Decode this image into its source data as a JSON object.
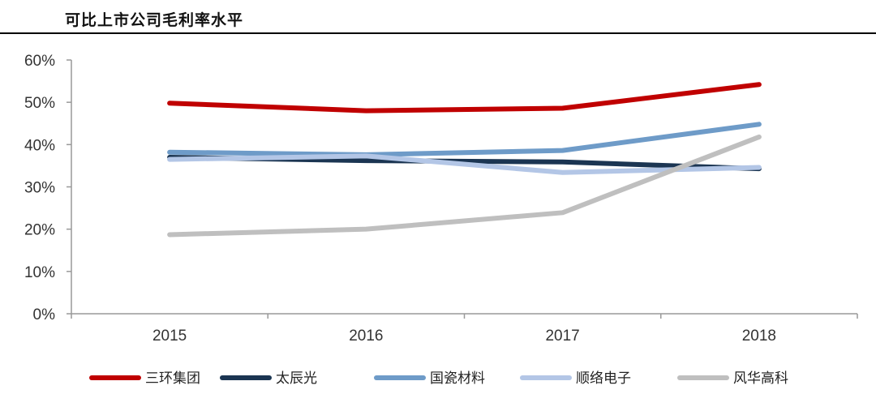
{
  "chart_data": {
    "type": "line",
    "title": "可比上市公司毛利率水平",
    "x": [
      "2015",
      "2016",
      "2017",
      "2018"
    ],
    "ylim": [
      0,
      60
    ],
    "yticks": [
      "0%",
      "10%",
      "20%",
      "30%",
      "40%",
      "50%",
      "60%"
    ],
    "grid": false,
    "legend_position": "bottom",
    "series": [
      {
        "name": "三环集团",
        "color": "#c00000",
        "values": [
          49.8,
          48.0,
          48.6,
          54.2
        ]
      },
      {
        "name": "太辰光",
        "color": "#1b3552",
        "values": [
          37.0,
          36.2,
          35.9,
          34.3
        ]
      },
      {
        "name": "国瓷材料",
        "color": "#6e9bc8",
        "values": [
          38.2,
          37.6,
          38.6,
          44.8
        ]
      },
      {
        "name": "顺络电子",
        "color": "#b3c6e6",
        "values": [
          36.5,
          37.3,
          33.4,
          34.6
        ]
      },
      {
        "name": "风华高科",
        "color": "#bfbfbf",
        "values": [
          18.7,
          20.0,
          23.9,
          41.8
        ]
      }
    ]
  }
}
